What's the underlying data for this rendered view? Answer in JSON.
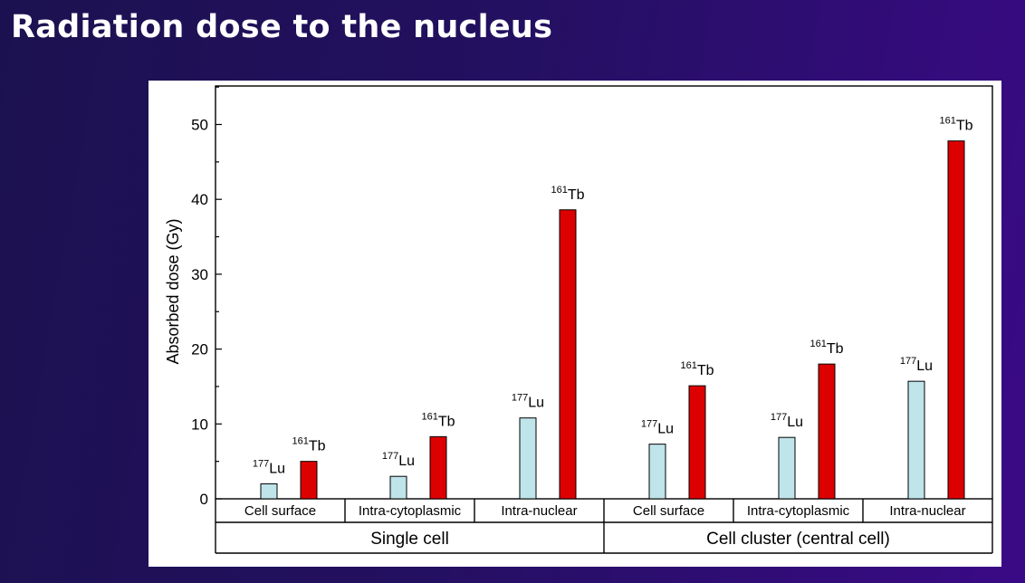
{
  "slide": {
    "title": "Radiation dose to the nucleus"
  },
  "chart_data": {
    "type": "bar",
    "title": "",
    "ylabel": "Absorbed dose (Gy)",
    "ylim": [
      0,
      55
    ],
    "yticks": [
      0,
      10,
      20,
      30,
      40,
      50
    ],
    "groups": [
      {
        "name": "Single cell",
        "categories": [
          "Cell surface",
          "Intra-cytoplasmic",
          "Intra-nuclear"
        ]
      },
      {
        "name": "Cell cluster (central cell)",
        "categories": [
          "Cell surface",
          "Intra-cytoplasmic",
          "Intra-nuclear"
        ]
      }
    ],
    "series": [
      {
        "name": "177Lu",
        "label_mass": "177",
        "label_symbol": "Lu",
        "color": "#bfe4ea",
        "values": [
          2.0,
          3.0,
          10.8,
          7.3,
          8.2,
          15.7
        ]
      },
      {
        "name": "161Tb",
        "label_mass": "161",
        "label_symbol": "Tb",
        "color": "#dd0000",
        "values": [
          5.0,
          8.3,
          38.6,
          15.1,
          18.0,
          47.8
        ]
      }
    ]
  }
}
